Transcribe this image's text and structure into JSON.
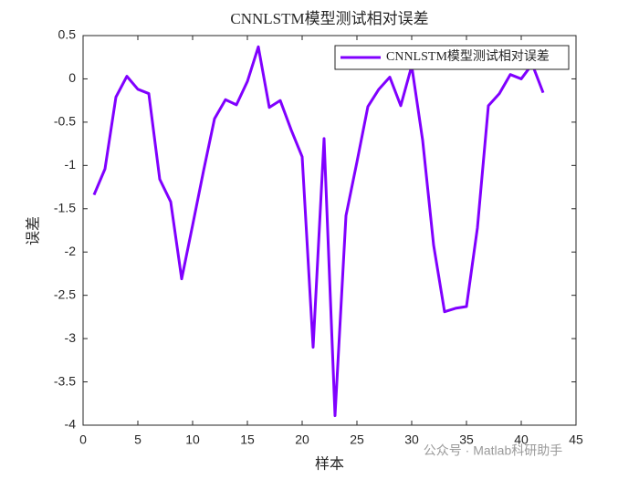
{
  "chart_data": {
    "type": "line",
    "title": "CNNLSTM模型测试相对误差",
    "xlabel": "样本",
    "ylabel": "误差",
    "x": [
      1,
      2,
      3,
      4,
      5,
      6,
      7,
      8,
      9,
      10,
      11,
      12,
      13,
      14,
      15,
      16,
      17,
      18,
      19,
      20,
      21,
      22,
      23,
      24,
      25,
      26,
      27,
      28,
      29,
      30,
      31,
      32,
      33,
      34,
      35,
      36,
      37,
      38,
      39,
      40,
      41,
      42
    ],
    "series": [
      {
        "name": "CNNLSTM模型测试相对误差",
        "color": "#8000ff",
        "values": [
          -1.34,
          -1.04,
          -0.21,
          0.03,
          -0.12,
          -0.17,
          -1.16,
          -1.42,
          -2.31,
          -1.69,
          -1.06,
          -0.46,
          -0.24,
          -0.3,
          -0.03,
          0.37,
          -0.33,
          -0.25,
          -0.59,
          -0.9,
          -3.1,
          -0.69,
          -3.89,
          -1.58,
          -0.96,
          -0.32,
          -0.12,
          0.02,
          -0.31,
          0.15,
          -0.71,
          -1.92,
          -2.69,
          -2.65,
          -2.63,
          -1.72,
          -0.31,
          -0.17,
          0.05,
          0.0,
          0.17,
          -0.16
        ]
      }
    ],
    "xlim": [
      0,
      45
    ],
    "xticks": [
      0,
      5,
      10,
      15,
      20,
      25,
      30,
      35,
      40,
      45
    ],
    "ylim": [
      -4,
      0.5
    ],
    "yticks": [
      0.5,
      0,
      -0.5,
      -1,
      -1.5,
      -2,
      -2.5,
      -3,
      -3.5,
      -4
    ],
    "legend": "upper-right",
    "watermark": "公众号 · Matlab科研助手"
  }
}
